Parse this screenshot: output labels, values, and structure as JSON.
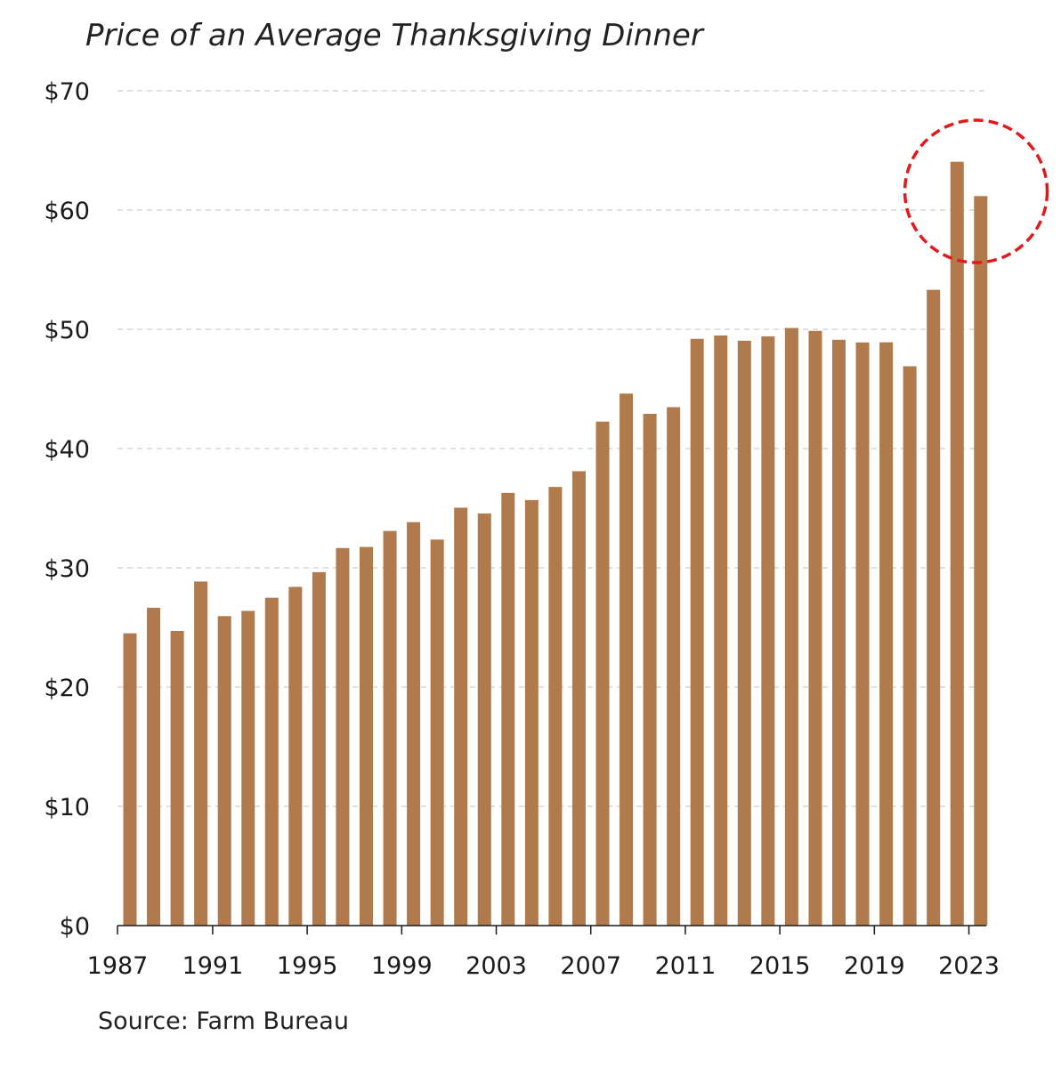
{
  "chart_data": {
    "type": "bar",
    "title": "Price of an Average Thanksgiving Dinner",
    "xlabel": "",
    "ylabel": "",
    "source": "Source: Farm Bureau",
    "ylim": [
      0,
      70
    ],
    "yticks": [
      0,
      10,
      20,
      30,
      40,
      50,
      60,
      70
    ],
    "ytick_labels": [
      "$0",
      "$10",
      "$20",
      "$30",
      "$40",
      "$50",
      "$60",
      "$70"
    ],
    "xtick_labels": [
      "1987",
      "1991",
      "1995",
      "1999",
      "2003",
      "2007",
      "2011",
      "2015",
      "2019",
      "2023"
    ],
    "grid": true,
    "bar_color": "#b07a4d",
    "annotation": {
      "type": "dashed-circle",
      "color": "#e31a1c",
      "around": [
        "2022",
        "2023"
      ]
    },
    "categories": [
      "1987",
      "1988",
      "1989",
      "1990",
      "1991",
      "1992",
      "1993",
      "1994",
      "1995",
      "1996",
      "1997",
      "1998",
      "1999",
      "2000",
      "2001",
      "2002",
      "2003",
      "2004",
      "2005",
      "2006",
      "2007",
      "2008",
      "2009",
      "2010",
      "2011",
      "2012",
      "2013",
      "2014",
      "2015",
      "2016",
      "2017",
      "2018",
      "2019",
      "2020",
      "2021",
      "2022",
      "2023"
    ],
    "values": [
      24.51,
      26.65,
      24.7,
      28.85,
      25.95,
      26.39,
      27.49,
      28.4,
      29.64,
      31.66,
      31.75,
      33.09,
      33.83,
      32.37,
      35.04,
      34.56,
      36.28,
      35.68,
      36.78,
      38.1,
      42.26,
      44.61,
      42.91,
      43.47,
      49.2,
      49.48,
      49.04,
      49.41,
      50.11,
      49.87,
      49.12,
      48.9,
      48.91,
      46.9,
      53.31,
      64.05,
      61.17
    ]
  }
}
